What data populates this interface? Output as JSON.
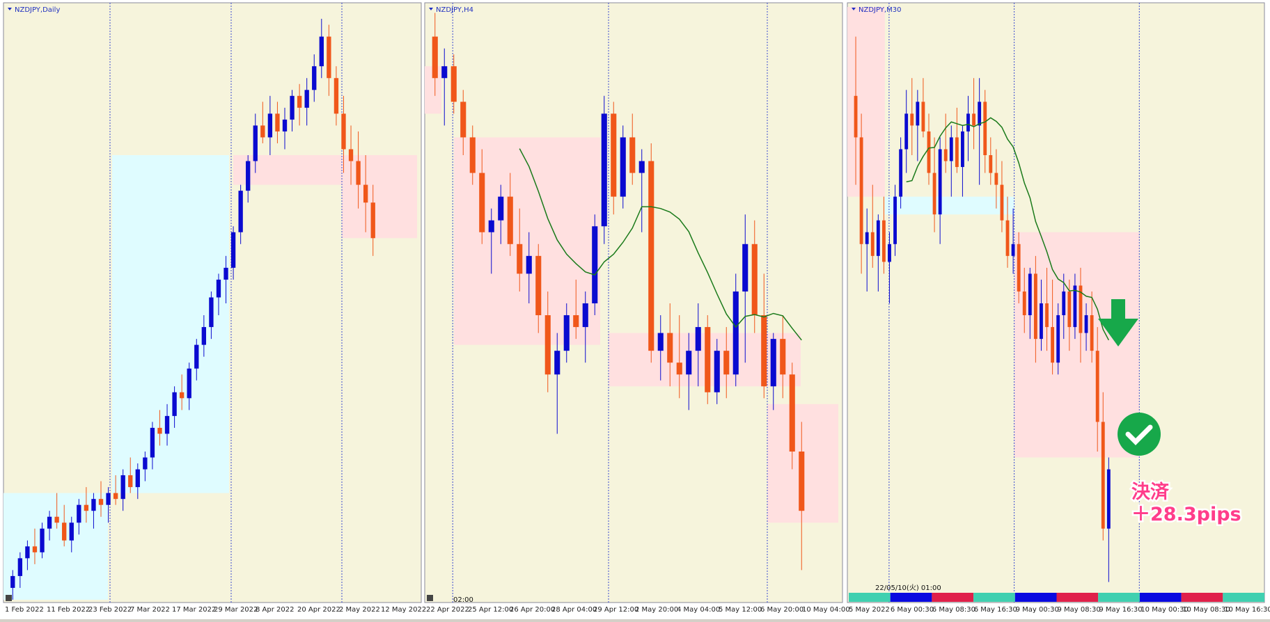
{
  "panels": [
    {
      "title": "NZDJPY,Daily",
      "dates": [
        "1 Feb 2022",
        "11 Feb 2022",
        "23 Feb 2022",
        "7 Mar 2022",
        "17 Mar 2022",
        "29 Mar 2022",
        "8 Apr 2022",
        "20 Apr 2022",
        "2 May 2022",
        "12 May 2022"
      ],
      "candles": [
        [
          2,
          5,
          0,
          4
        ],
        [
          4,
          8,
          2,
          7
        ],
        [
          7,
          10,
          5,
          9
        ],
        [
          9,
          12,
          6,
          8
        ],
        [
          8,
          13,
          7,
          12
        ],
        [
          12,
          15,
          10,
          14
        ],
        [
          14,
          18,
          12,
          13
        ],
        [
          13,
          16,
          9,
          10
        ],
        [
          10,
          14,
          8,
          13
        ],
        [
          13,
          17,
          11,
          16
        ],
        [
          16,
          19,
          13,
          15
        ],
        [
          15,
          18,
          12,
          17
        ],
        [
          17,
          20,
          14,
          16
        ],
        [
          16,
          19,
          13,
          18
        ],
        [
          18,
          21,
          16,
          17
        ],
        [
          17,
          22,
          15,
          21
        ],
        [
          21,
          24,
          18,
          19
        ],
        [
          19,
          23,
          17,
          22
        ],
        [
          22,
          25,
          20,
          24
        ],
        [
          24,
          30,
          22,
          29
        ],
        [
          29,
          32,
          26,
          28
        ],
        [
          28,
          33,
          26,
          31
        ],
        [
          31,
          36,
          29,
          35
        ],
        [
          35,
          38,
          32,
          34
        ],
        [
          34,
          40,
          32,
          39
        ],
        [
          39,
          44,
          37,
          43
        ],
        [
          43,
          48,
          41,
          46
        ],
        [
          46,
          52,
          44,
          51
        ],
        [
          51,
          55,
          48,
          54
        ],
        [
          54,
          58,
          50,
          56
        ],
        [
          56,
          63,
          54,
          62
        ],
        [
          62,
          70,
          60,
          69
        ],
        [
          69,
          75,
          67,
          74
        ],
        [
          74,
          82,
          72,
          80
        ],
        [
          80,
          84,
          77,
          78
        ],
        [
          78,
          85,
          75,
          82
        ],
        [
          82,
          84,
          77,
          79
        ],
        [
          79,
          83,
          76,
          81
        ],
        [
          81,
          86,
          79,
          85
        ],
        [
          85,
          87,
          80,
          83
        ],
        [
          83,
          88,
          80,
          86
        ],
        [
          86,
          92,
          84,
          90
        ],
        [
          90,
          98,
          88,
          95
        ],
        [
          95,
          97,
          85,
          88
        ],
        [
          88,
          90,
          80,
          82
        ],
        [
          82,
          85,
          72,
          76
        ],
        [
          76,
          80,
          70,
          74
        ],
        [
          74,
          79,
          66,
          70
        ],
        [
          70,
          75,
          62,
          67
        ],
        [
          67,
          70,
          58,
          61
        ]
      ]
    },
    {
      "title": "NZDJPY,H4",
      "dates": [
        "22 Apr 2022",
        "25 Apr 12:00",
        "26 Apr 20:00",
        "28 Apr 04:00",
        "29 Apr 12:00",
        "2 May 20:00",
        "4 May 04:00",
        "5 May 12:00",
        "6 May 20:00",
        "10 May 04:00"
      ],
      "candles": [
        [
          95,
          99,
          85,
          88
        ],
        [
          88,
          93,
          80,
          90
        ],
        [
          90,
          92,
          82,
          84
        ],
        [
          84,
          86,
          75,
          78
        ],
        [
          78,
          80,
          70,
          72
        ],
        [
          72,
          76,
          60,
          62
        ],
        [
          62,
          66,
          55,
          64
        ],
        [
          64,
          70,
          60,
          68
        ],
        [
          68,
          72,
          58,
          60
        ],
        [
          60,
          66,
          52,
          55
        ],
        [
          55,
          62,
          50,
          58
        ],
        [
          58,
          60,
          45,
          48
        ],
        [
          48,
          52,
          35,
          38
        ],
        [
          38,
          45,
          28,
          42
        ],
        [
          42,
          50,
          40,
          48
        ],
        [
          48,
          54,
          44,
          46
        ],
        [
          46,
          52,
          40,
          50
        ],
        [
          50,
          65,
          48,
          63
        ],
        [
          63,
          85,
          60,
          82
        ],
        [
          82,
          84,
          65,
          68
        ],
        [
          68,
          80,
          66,
          78
        ],
        [
          78,
          82,
          70,
          72
        ],
        [
          72,
          76,
          62,
          74
        ],
        [
          74,
          77,
          40,
          42
        ],
        [
          42,
          48,
          37,
          45
        ],
        [
          45,
          50,
          36,
          40
        ],
        [
          40,
          48,
          34,
          38
        ],
        [
          38,
          45,
          32,
          42
        ],
        [
          42,
          50,
          36,
          46
        ],
        [
          46,
          48,
          33,
          35
        ],
        [
          35,
          44,
          33,
          42
        ],
        [
          42,
          46,
          34,
          38
        ],
        [
          38,
          55,
          36,
          52
        ],
        [
          52,
          65,
          40,
          60
        ],
        [
          60,
          64,
          45,
          48
        ],
        [
          48,
          55,
          34,
          36
        ],
        [
          36,
          45,
          32,
          44
        ],
        [
          44,
          48,
          34,
          38
        ],
        [
          38,
          40,
          22,
          25
        ],
        [
          25,
          30,
          5,
          15
        ]
      ]
    },
    {
      "title": "NZDJPY,M30",
      "dates": [
        "5 May 2022",
        "6 May 00:30",
        "6 May 08:30",
        "6 May 16:30",
        "9 May 00:30",
        "9 May 08:30",
        "9 May 16:30",
        "10 May 00:30",
        "10 May 08:30",
        "10 May 16:30"
      ],
      "candles": [
        [
          85,
          95,
          70,
          78
        ],
        [
          78,
          82,
          55,
          60
        ],
        [
          60,
          66,
          52,
          62
        ],
        [
          62,
          70,
          56,
          58
        ],
        [
          58,
          65,
          52,
          64
        ],
        [
          64,
          68,
          55,
          57
        ],
        [
          57,
          62,
          50,
          60
        ],
        [
          60,
          70,
          58,
          68
        ],
        [
          68,
          78,
          66,
          76
        ],
        [
          76,
          86,
          72,
          82
        ],
        [
          82,
          88,
          75,
          80
        ],
        [
          80,
          86,
          74,
          84
        ],
        [
          84,
          88,
          78,
          79
        ],
        [
          79,
          82,
          70,
          72
        ],
        [
          72,
          78,
          62,
          65
        ],
        [
          65,
          78,
          60,
          76
        ],
        [
          76,
          82,
          72,
          74
        ],
        [
          74,
          80,
          68,
          78
        ],
        [
          78,
          83,
          72,
          73
        ],
        [
          73,
          80,
          68,
          79
        ],
        [
          79,
          85,
          74,
          82
        ],
        [
          82,
          88,
          76,
          80
        ],
        [
          80,
          88,
          70,
          84
        ],
        [
          84,
          86,
          72,
          75
        ],
        [
          75,
          78,
          70,
          72
        ],
        [
          72,
          76,
          66,
          70
        ],
        [
          70,
          74,
          62,
          64
        ],
        [
          64,
          68,
          56,
          58
        ],
        [
          58,
          66,
          55,
          60
        ],
        [
          60,
          62,
          50,
          52
        ],
        [
          52,
          56,
          45,
          48
        ],
        [
          48,
          56,
          44,
          55
        ],
        [
          55,
          58,
          40,
          44
        ],
        [
          44,
          54,
          42,
          50
        ],
        [
          50,
          56,
          42,
          46
        ],
        [
          46,
          54,
          38,
          40
        ],
        [
          40,
          50,
          38,
          48
        ],
        [
          48,
          55,
          44,
          52
        ],
        [
          52,
          54,
          42,
          46
        ],
        [
          46,
          55,
          44,
          53
        ],
        [
          53,
          56,
          40,
          45
        ],
        [
          45,
          50,
          42,
          48
        ],
        [
          48,
          52,
          40,
          42
        ],
        [
          42,
          46,
          25,
          30
        ],
        [
          30,
          35,
          10,
          12
        ],
        [
          12,
          24,
          3,
          22
        ]
      ]
    }
  ],
  "cursor_time": "02:00",
  "crosshair_label": "22/05/10(火) 01:00",
  "annotation": {
    "line1": "決済",
    "line2": "＋28.3pips"
  }
}
